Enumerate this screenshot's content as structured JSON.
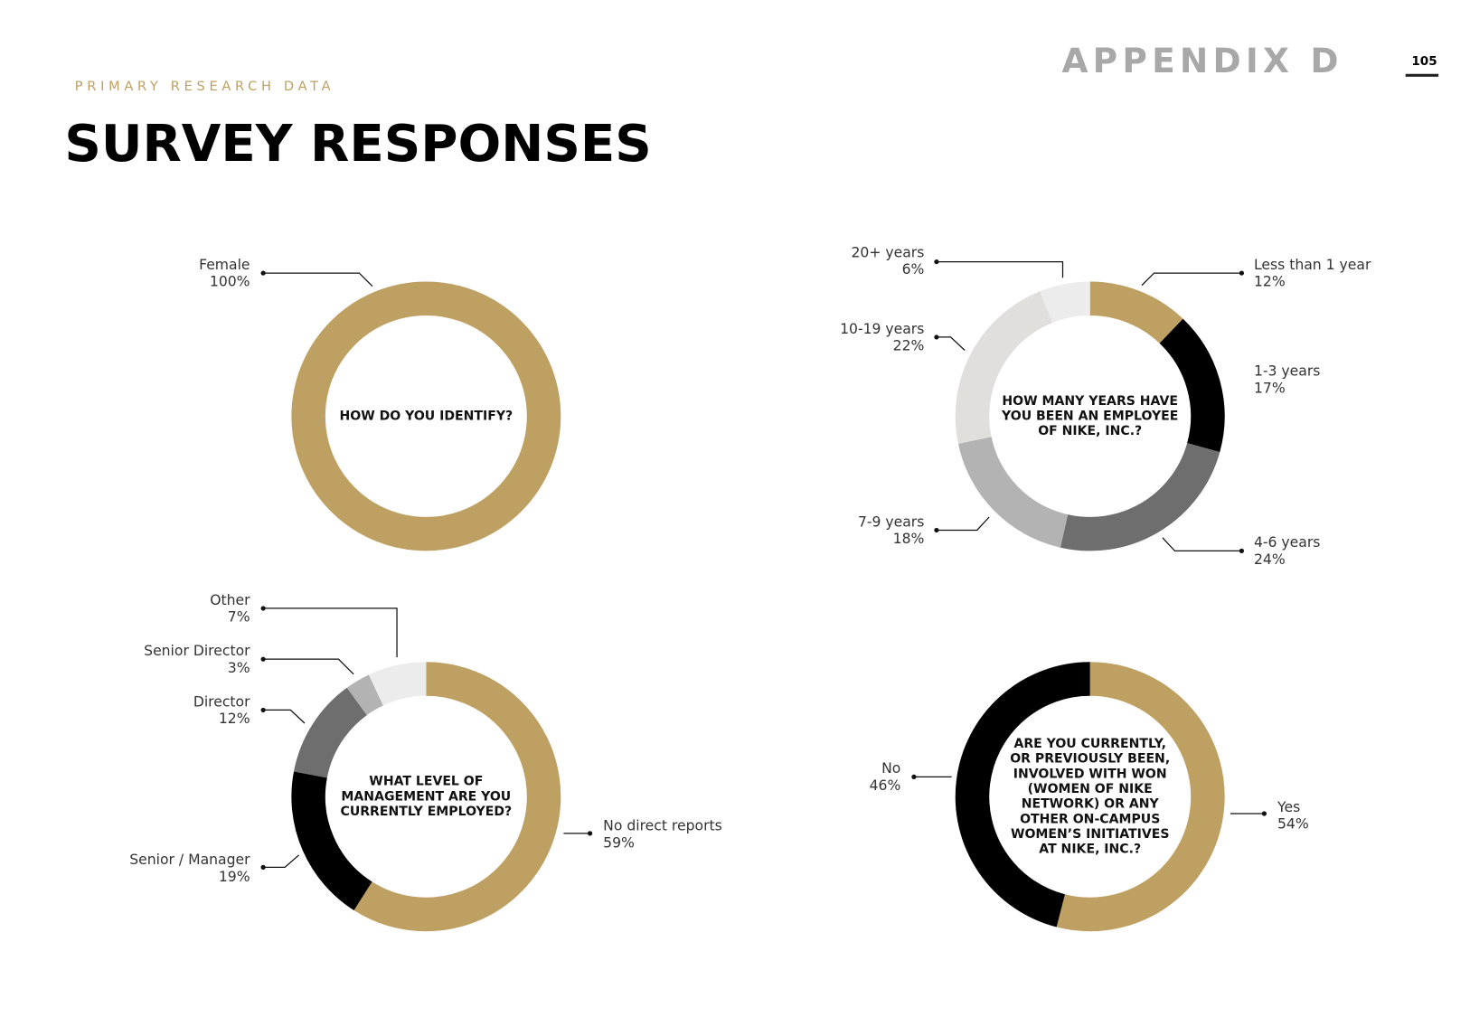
{
  "header": {
    "eyebrow": "PRIMARY RESEARCH DATA",
    "title": "SURVEY RESPONSES",
    "section": "APPENDIX D",
    "page_number": "105"
  },
  "chart_data": [
    {
      "type": "pie",
      "title": "HOW DO YOU IDENTIFY?",
      "categories": [
        "Female"
      ],
      "values": [
        100
      ],
      "value_labels": [
        "100%"
      ],
      "colors": [
        "#bfa063"
      ]
    },
    {
      "type": "pie",
      "title": "HOW MANY YEARS HAVE YOU BEEN AN EMPLOYEE OF NIKE, INC.?",
      "categories": [
        "Less than 1 year",
        "1-3 years",
        "4-6 years",
        "7-9 years",
        "10-19 years",
        "20+ years"
      ],
      "values": [
        12,
        17,
        24,
        18,
        22,
        6
      ],
      "value_labels": [
        "12%",
        "17%",
        "24%",
        "18%",
        "22%",
        "6%"
      ],
      "colors": [
        "#bfa063",
        "#000000",
        "#6e6e6e",
        "#b3b3b3",
        "#e0dfdc",
        "#ececec"
      ]
    },
    {
      "type": "pie",
      "title": "WHAT LEVEL OF MANAGEMENT ARE YOU CURRENTLY EMPLOYED?",
      "categories": [
        "No direct reports",
        "Senior / Manager",
        "Director",
        "Senior Director",
        "Other"
      ],
      "values": [
        59,
        19,
        12,
        3,
        7
      ],
      "value_labels": [
        "59%",
        "19%",
        "12%",
        "3%",
        "7%"
      ],
      "colors": [
        "#bfa063",
        "#000000",
        "#6e6e6e",
        "#b3b3b3",
        "#ececec"
      ]
    },
    {
      "type": "pie",
      "title": "ARE YOU CURRENTLY, OR PREVIOUSLY BEEN, INVOLVED WITH WON (WOMEN OF NIKE NETWORK) OR ANY OTHER ON-CAMPUS WOMEN’S INITIATIVES AT NIKE, INC.?",
      "categories": [
        "Yes",
        "No"
      ],
      "values": [
        54,
        46
      ],
      "value_labels": [
        "54%",
        "46%"
      ],
      "colors": [
        "#bfa063",
        "#000000"
      ]
    }
  ]
}
